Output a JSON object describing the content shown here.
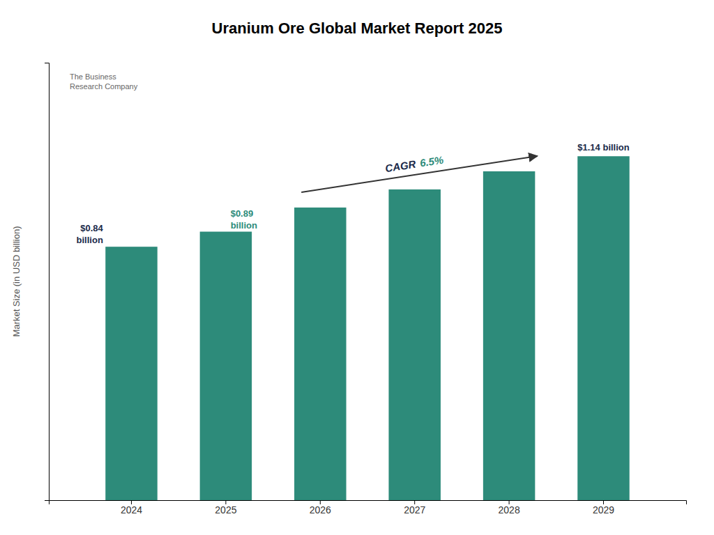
{
  "chart_data": {
    "type": "bar",
    "title": "Uranium Ore Global Market Report 2025",
    "categories": [
      "2024",
      "2025",
      "2026",
      "2027",
      "2028",
      "2029"
    ],
    "values": [
      0.84,
      0.89,
      0.97,
      1.03,
      1.09,
      1.14
    ],
    "color": "#2d8b7a",
    "ylabel": "Market Size (in USD billion)",
    "ylim": [
      0,
      1.45
    ],
    "tick_labels": "x",
    "grid": false,
    "annotations": [
      {
        "text": "$0.84\nbillion",
        "x": "2024",
        "color": "#1a2a4a"
      },
      {
        "text": "$0.89\nbillion",
        "x": "2025",
        "color": "#2d8b7a"
      },
      {
        "text": "$1.14 billion",
        "x": "2029",
        "color": "#1a2a4a"
      },
      {
        "text": "CAGR",
        "color": "#1a2a4a"
      },
      {
        "text": "6.5%",
        "color": "#2d8b7a"
      },
      {
        "text": "The Business\nResearch Company"
      }
    ]
  }
}
